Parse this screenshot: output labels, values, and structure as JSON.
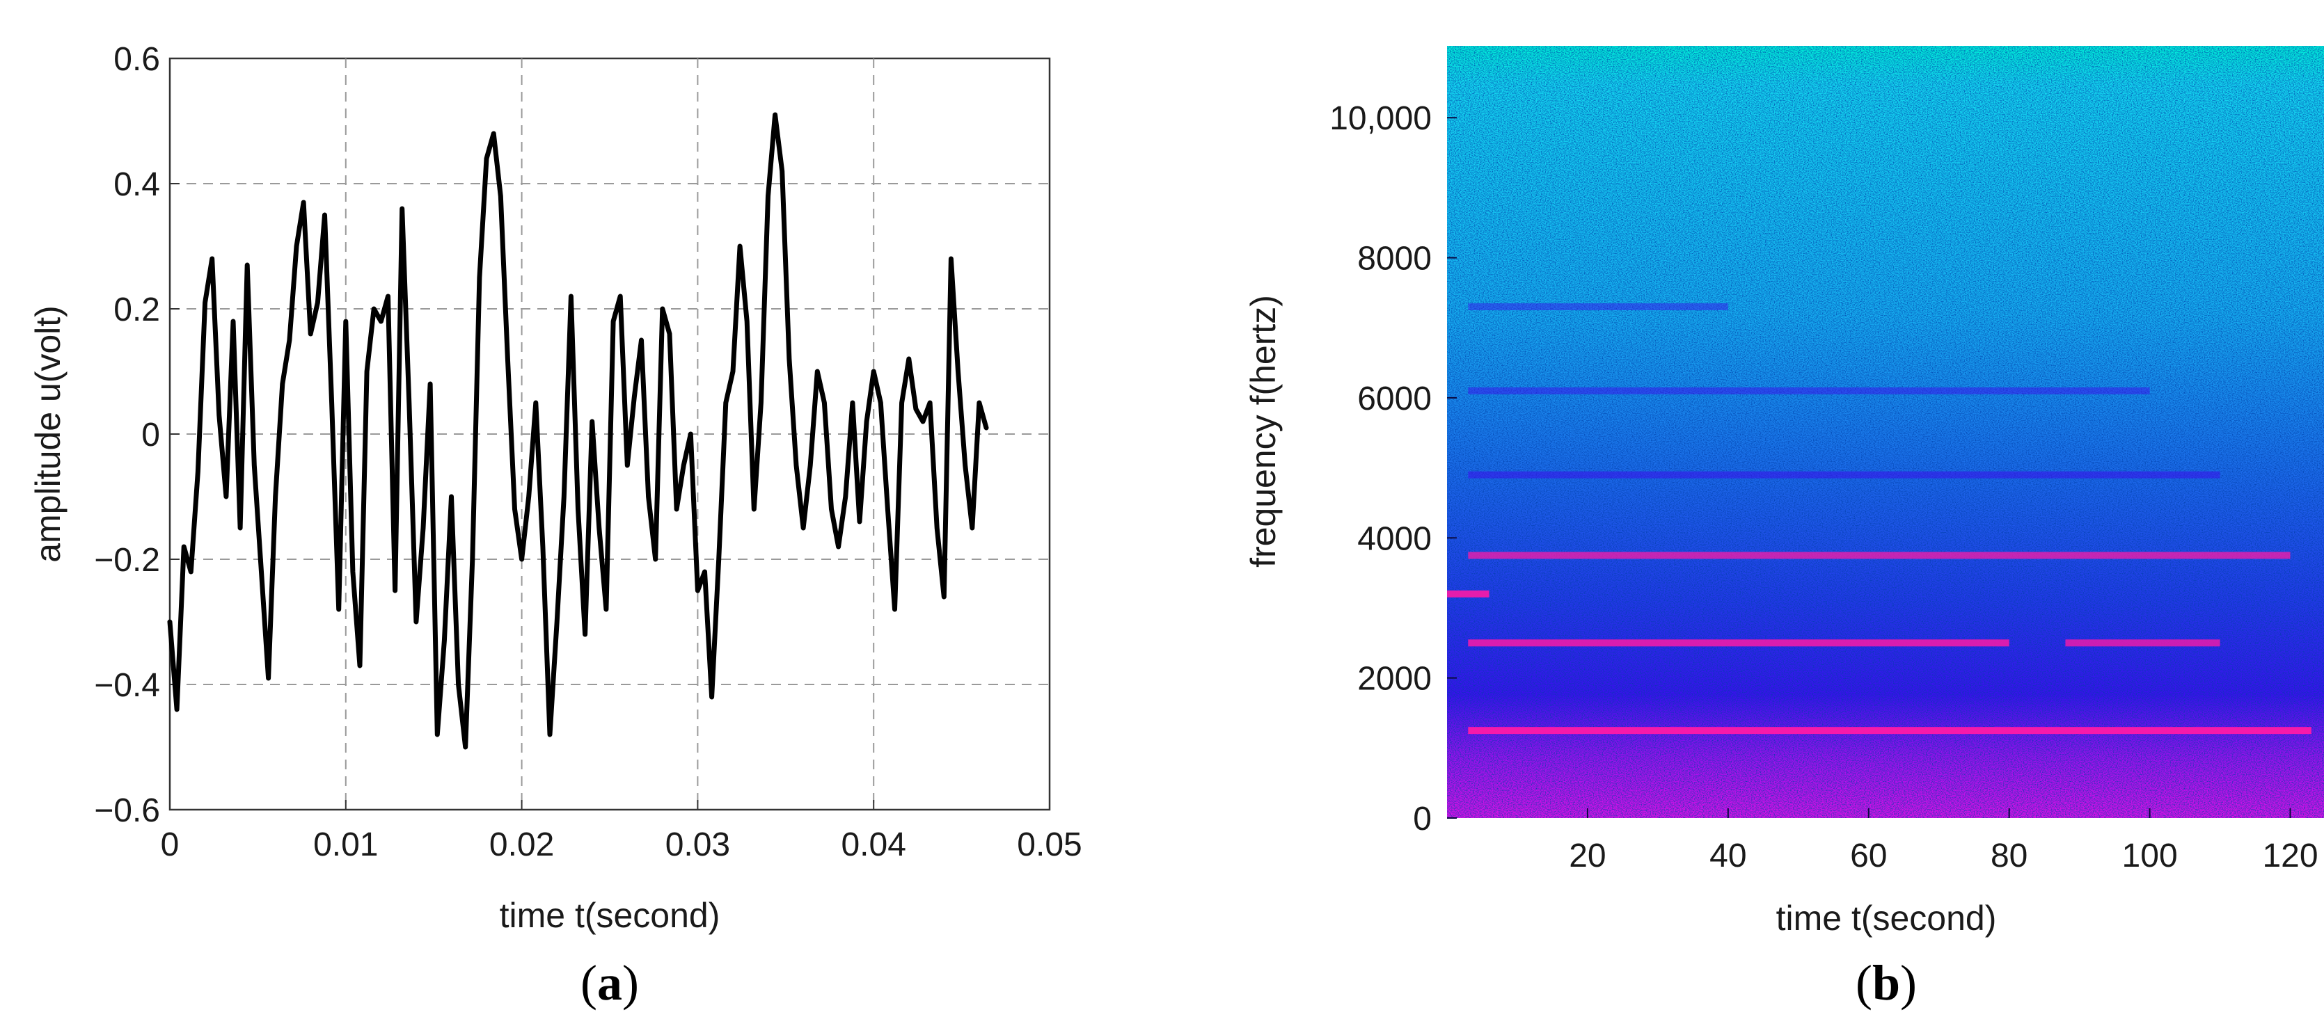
{
  "colors": {
    "waveform": "#000000",
    "grid": "#9a9a9a",
    "axis": "#333333",
    "spec_top": "#00f0d8",
    "spec_high": "#17b6f0",
    "spec_mid": "#1a4fe6",
    "spec_low": "#3a10ee",
    "spec_base": "#cc10ee",
    "harmonic": "#ff1aa6"
  },
  "chart_data": [
    {
      "type": "line",
      "panel_label": {
        "open": "(",
        "letter": "a",
        "close": ")"
      },
      "xlabel": "time t(second)",
      "ylabel": "amplitude u(volt)",
      "xlim": [
        0,
        0.05
      ],
      "ylim": [
        -0.6,
        0.6
      ],
      "xticks": [
        0,
        0.01,
        0.02,
        0.03,
        0.04,
        0.05
      ],
      "xtick_labels": [
        "0",
        "0.01",
        "0.02",
        "0.03",
        "0.04",
        "0.05"
      ],
      "yticks": [
        -0.6,
        -0.4,
        -0.2,
        0,
        0.2,
        0.4,
        0.6
      ],
      "ytick_labels": [
        "−0.6",
        "−0.4",
        "−0.2",
        "0",
        "0.2",
        "0.4",
        "0.6"
      ],
      "grid": true,
      "series": [
        {
          "x": [
            0.0,
            0.0004,
            0.0008,
            0.0012,
            0.0016,
            0.002,
            0.0024,
            0.0028,
            0.0032,
            0.0036,
            0.004,
            0.0044,
            0.0048,
            0.0052,
            0.0056,
            0.006,
            0.0064,
            0.0068,
            0.0072,
            0.0076,
            0.008,
            0.0084,
            0.0088,
            0.0092,
            0.0096,
            0.01,
            0.0104,
            0.0108,
            0.0112,
            0.0116,
            0.012,
            0.0124,
            0.0128,
            0.0132,
            0.0136,
            0.014,
            0.0144,
            0.0148,
            0.0152,
            0.0156,
            0.016,
            0.0164,
            0.0168,
            0.0172,
            0.0176,
            0.018,
            0.0184,
            0.0188,
            0.0192,
            0.0196,
            0.02,
            0.0204,
            0.0208,
            0.0212,
            0.0216,
            0.022,
            0.0224,
            0.0228,
            0.0232,
            0.0236,
            0.024,
            0.0244,
            0.0248,
            0.0252,
            0.0256,
            0.026,
            0.0264,
            0.0268,
            0.0272,
            0.0276,
            0.028,
            0.0284,
            0.0288,
            0.0292,
            0.0296,
            0.03,
            0.0304,
            0.0308,
            0.0312,
            0.0316,
            0.032,
            0.0324,
            0.0328,
            0.0332,
            0.0336,
            0.034,
            0.0344,
            0.0348,
            0.0352,
            0.0356,
            0.036,
            0.0364,
            0.0368,
            0.0372,
            0.0376,
            0.038,
            0.0384,
            0.0388,
            0.0392,
            0.0396,
            0.04,
            0.0404,
            0.0408,
            0.0412,
            0.0416,
            0.042,
            0.0424,
            0.0428,
            0.0432,
            0.0436,
            0.044,
            0.0444,
            0.0448,
            0.0452,
            0.0456,
            0.046,
            0.0464
          ],
          "y": [
            -0.3,
            -0.44,
            -0.18,
            -0.22,
            -0.06,
            0.21,
            0.28,
            0.03,
            -0.1,
            0.18,
            -0.15,
            0.27,
            -0.05,
            -0.22,
            -0.39,
            -0.1,
            0.08,
            0.15,
            0.3,
            0.37,
            0.16,
            0.21,
            0.35,
            0.05,
            -0.28,
            0.18,
            -0.22,
            -0.37,
            0.1,
            0.2,
            0.18,
            0.22,
            -0.25,
            0.36,
            0.05,
            -0.3,
            -0.15,
            0.08,
            -0.48,
            -0.33,
            -0.1,
            -0.4,
            -0.5,
            -0.2,
            0.25,
            0.44,
            0.48,
            0.38,
            0.12,
            -0.12,
            -0.2,
            -0.1,
            0.05,
            -0.18,
            -0.48,
            -0.3,
            -0.1,
            0.22,
            -0.12,
            -0.32,
            0.02,
            -0.15,
            -0.28,
            0.18,
            0.22,
            -0.05,
            0.06,
            0.15,
            -0.1,
            -0.2,
            0.2,
            0.16,
            -0.12,
            -0.05,
            0.0,
            -0.25,
            -0.22,
            -0.42,
            -0.2,
            0.05,
            0.1,
            0.3,
            0.18,
            -0.12,
            0.05,
            0.38,
            0.51,
            0.42,
            0.12,
            -0.05,
            -0.15,
            -0.05,
            0.1,
            0.05,
            -0.12,
            -0.18,
            -0.1,
            0.05,
            -0.14,
            0.02,
            0.1,
            0.05,
            -0.12,
            -0.28,
            0.05,
            0.12,
            0.04,
            0.02,
            0.05,
            -0.15,
            -0.26,
            0.28,
            0.1,
            -0.05,
            -0.15,
            0.05,
            0.01
          ],
          "note_x_units": "second"
        }
      ]
    },
    {
      "type": "heatmap",
      "panel_label": {
        "open": "(",
        "letter": "b",
        "close": ")"
      },
      "xlabel": "time t(second)",
      "ylabel": "frequency f(hertz)",
      "xlim": [
        0,
        125
      ],
      "ylim": [
        0,
        11025
      ],
      "xticks": [
        20,
        40,
        60,
        80,
        100,
        120
      ],
      "xtick_labels": [
        "20",
        "40",
        "60",
        "80",
        "100",
        "120"
      ],
      "yticks": [
        0,
        2000,
        4000,
        6000,
        8000,
        10000
      ],
      "ytick_labels": [
        "0",
        "2000",
        "4000",
        "6000",
        "8000",
        "10,000"
      ],
      "grid": false,
      "harmonic_bands": [
        {
          "freq": 1250,
          "start": 3,
          "end": 123,
          "strength": 1.0
        },
        {
          "freq": 2500,
          "start": 3,
          "end": 80,
          "strength": 0.8
        },
        {
          "freq": 2500,
          "start": 88,
          "end": 110,
          "strength": 0.7
        },
        {
          "freq": 3200,
          "start": 0,
          "end": 6,
          "strength": 0.9
        },
        {
          "freq": 3750,
          "start": 3,
          "end": 120,
          "strength": 0.65
        },
        {
          "freq": 4900,
          "start": 3,
          "end": 110,
          "strength": 0.35
        },
        {
          "freq": 6100,
          "start": 3,
          "end": 100,
          "strength": 0.25
        },
        {
          "freq": 7300,
          "start": 3,
          "end": 40,
          "strength": 0.18
        }
      ]
    }
  ]
}
